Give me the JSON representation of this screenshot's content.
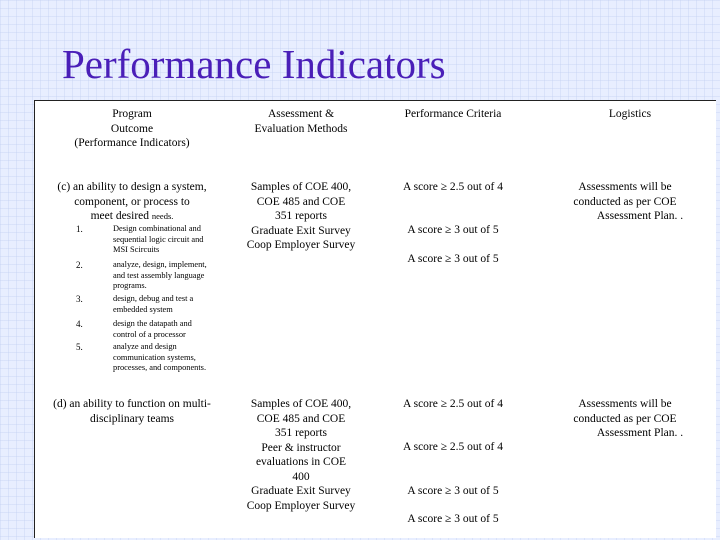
{
  "title": "Performance Indicators",
  "table": {
    "headers": [
      "Program Outcome (Performance Indicators)",
      "Assessment & Evaluation Methods",
      "Performance Criteria",
      "Logistics"
    ],
    "header_lines": {
      "outcome": [
        "Program",
        "Outcome",
        "(Performance Indicators)"
      ],
      "methods": [
        "Assessment &",
        "Evaluation Methods"
      ]
    },
    "rows": [
      {
        "outcome_lines": [
          "(c) an ability to design a system,",
          "component, or process to",
          "meet desired"
        ],
        "outcome_needs": "needs.",
        "indicators": [
          {
            "num": "1.",
            "lines": [
              "Design combinational and",
              "sequential logic circuit and",
              "MSI Scircuits"
            ]
          },
          {
            "num": "2.",
            "lines": [
              " analyze, design, implement,",
              "and test assembly language",
              "programs."
            ]
          },
          {
            "num": "3.",
            "lines": [
              " design, debug and test a",
              "embedded system"
            ]
          },
          {
            "num": "4.",
            "lines": [
              "design the datapath and",
              "control of a processor"
            ]
          },
          {
            "num": "5.",
            "lines": [
              "analyze and design",
              "communication systems,",
              "processes, and components."
            ]
          }
        ],
        "methods_lines": [
          "Samples of COE 400,",
          "COE 485 and COE",
          "351 reports",
          "Graduate Exit Survey",
          "Coop  Employer Survey"
        ],
        "criteria": [
          "A score ≥ 2.5 out of 4",
          "A score ≥ 3 out of 5",
          "A score ≥ 3 out of 5"
        ],
        "logistics_lines": [
          "Assessments will be",
          "conducted as per COE",
          "Assessment Plan. ."
        ]
      },
      {
        "outcome_lines": [
          "(d) an ability to function on multi-",
          "disciplinary teams"
        ],
        "methods_lines": [
          "Samples of COE 400,",
          "COE 485 and COE",
          "351 reports",
          "Peer & instructor",
          "evaluations in COE",
          "400",
          "Graduate Exit Survey",
          "Coop  Employer Survey"
        ],
        "criteria": [
          "A score ≥ 2.5 out of 4",
          "A score ≥ 2.5 out of 4",
          "A score ≥ 3 out of 5",
          "A score ≥ 3 out of 5"
        ],
        "logistics_lines": [
          "Assessments will be",
          "conducted as per COE",
          "Assessment Plan. ."
        ]
      }
    ]
  }
}
